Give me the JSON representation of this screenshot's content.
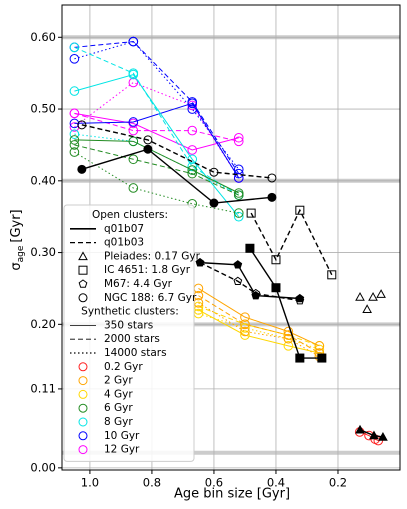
{
  "chart_data": {
    "type": "line",
    "xlabel": "Age bin size [Gyr]",
    "ylabel": {
      "symbol": "σ",
      "subscript": "age",
      "unit": "[Gyr]"
    },
    "xlim": [
      1.09,
      0.0
    ],
    "ylim": [
      -0.003,
      0.645
    ],
    "xticks": [
      {
        "value": 1,
        "label": "1.0"
      },
      0.8,
      0.6,
      0.4,
      0.2
    ],
    "yticks": [
      {
        "value": 0,
        "label": "0.00"
      },
      0.11,
      {
        "value": 0.2,
        "label": "0.20"
      },
      {
        "value": 0.3,
        "label": "0.30"
      },
      {
        "value": 0.4,
        "label": "0.40"
      },
      {
        "value": 0.5,
        "label": "0.50"
      },
      {
        "value": 0.6,
        "label": "0.60"
      }
    ],
    "grid": true,
    "hlines": [
      0.6,
      0.4,
      0.2,
      0.021
    ],
    "hline_color": "#cccccc",
    "series": [
      {
        "color": "#ff00ff",
        "dash": "solid",
        "marker": "circle",
        "filled": false,
        "x": [
          1.05,
          0.86,
          0.67,
          0.52
        ],
        "values": [
          0.494,
          0.48,
          0.443,
          0.46
        ]
      },
      {
        "color": "#ff00ff",
        "dash": "dashed",
        "marker": "circle",
        "filled": false,
        "x": [
          1.05,
          0.86,
          0.67,
          0.52
        ],
        "values": [
          0.494,
          0.47,
          0.47,
          0.455
        ]
      },
      {
        "color": "#ff00ff",
        "dash": "dotted",
        "marker": "circle",
        "filled": false,
        "x": [
          1.05,
          0.86,
          0.67,
          0.52
        ],
        "values": [
          0.475,
          0.537,
          0.505,
          0.404
        ]
      },
      {
        "color": "#0000ff",
        "dash": "solid",
        "marker": "circle",
        "filled": false,
        "x": [
          1.05,
          0.86,
          0.67,
          0.52
        ],
        "values": [
          0.48,
          0.482,
          0.508,
          0.404
        ]
      },
      {
        "color": "#0000ff",
        "dash": "dashed",
        "marker": "circle",
        "filled": false,
        "x": [
          1.05,
          0.86,
          0.67,
          0.52
        ],
        "values": [
          0.586,
          0.594,
          0.51,
          0.41
        ]
      },
      {
        "color": "#0000ff",
        "dash": "dotted",
        "marker": "circle",
        "filled": false,
        "x": [
          1.05,
          0.86,
          0.67,
          0.52
        ],
        "values": [
          0.57,
          0.594,
          0.5,
          0.416
        ]
      },
      {
        "color": "#00e5e5",
        "dash": "solid",
        "marker": "circle",
        "filled": false,
        "x": [
          1.05,
          0.86,
          0.67,
          0.52
        ],
        "values": [
          0.525,
          0.548,
          0.43,
          0.35
        ]
      },
      {
        "color": "#00e5e5",
        "dash": "dashed",
        "marker": "circle",
        "filled": false,
        "x": [
          1.05,
          0.86,
          0.67,
          0.52
        ],
        "values": [
          0.586,
          0.55,
          0.42,
          0.38
        ]
      },
      {
        "color": "#00e5e5",
        "dash": "dotted",
        "marker": "circle",
        "filled": false,
        "x": [
          1.05,
          0.86,
          0.67,
          0.52
        ],
        "values": [
          0.465,
          0.455,
          0.415,
          0.38
        ]
      },
      {
        "color": "#228b22",
        "dash": "solid",
        "marker": "circle",
        "filled": false,
        "x": [
          1.05,
          0.86,
          0.67,
          0.52
        ],
        "values": [
          0.457,
          0.455,
          0.415,
          0.383
        ]
      },
      {
        "color": "#228b22",
        "dash": "dashed",
        "marker": "circle",
        "filled": false,
        "x": [
          1.05,
          0.86,
          0.67,
          0.52
        ],
        "values": [
          0.45,
          0.43,
          0.41,
          0.38
        ]
      },
      {
        "color": "#228b22",
        "dash": "dotted",
        "marker": "circle",
        "filled": false,
        "x": [
          1.05,
          0.86,
          0.67,
          0.52
        ],
        "values": [
          0.44,
          0.39,
          0.368,
          0.355
        ]
      },
      {
        "color": "#ffd700",
        "dash": "solid",
        "marker": "circle",
        "filled": false,
        "x": [
          0.65,
          0.5,
          0.36,
          0.26
        ],
        "values": [
          0.22,
          0.185,
          0.17,
          0.16
        ]
      },
      {
        "color": "#ffd700",
        "dash": "dashed",
        "marker": "circle",
        "filled": false,
        "x": [
          0.65,
          0.5,
          0.36,
          0.26
        ],
        "values": [
          0.225,
          0.2,
          0.185,
          0.17
        ]
      },
      {
        "color": "#ffd700",
        "dash": "dotted",
        "marker": "circle",
        "filled": false,
        "x": [
          0.65,
          0.5,
          0.36,
          0.26
        ],
        "values": [
          0.215,
          0.195,
          0.18,
          0.165
        ]
      },
      {
        "color": "#ffa500",
        "dash": "solid",
        "marker": "circle",
        "filled": false,
        "x": [
          0.65,
          0.5,
          0.36,
          0.26
        ],
        "values": [
          0.25,
          0.21,
          0.19,
          0.17
        ]
      },
      {
        "color": "#ffa500",
        "dash": "dashed",
        "marker": "circle",
        "filled": false,
        "x": [
          0.65,
          0.5,
          0.36,
          0.26
        ],
        "values": [
          0.24,
          0.2,
          0.185,
          0.16
        ]
      },
      {
        "color": "#ffa500",
        "dash": "dotted",
        "marker": "circle",
        "filled": false,
        "x": [
          0.65,
          0.5,
          0.36,
          0.26
        ],
        "values": [
          0.23,
          0.19,
          0.18,
          0.155
        ]
      },
      {
        "color": "#ff2020",
        "dash": "solid",
        "marker": "circle",
        "filled": false,
        "x": [
          0.13,
          0.1,
          0.08,
          0.07
        ],
        "values": [
          0.05,
          0.045,
          0.04,
          0.038
        ]
      },
      {
        "color": "#000000",
        "dash": "solid",
        "marker": "circle",
        "filled": true,
        "x": [
          1.026,
          0.813,
          0.6,
          0.413
        ],
        "values": [
          0.416,
          0.444,
          0.369,
          0.377
        ]
      },
      {
        "color": "#000000",
        "dash": "dashed",
        "marker": "circle",
        "filled": false,
        "x": [
          1.026,
          0.813,
          0.6,
          0.413
        ],
        "values": [
          0.478,
          0.457,
          0.412,
          0.404
        ]
      },
      {
        "color": "#000000",
        "dash": "solid",
        "marker": "pentagon",
        "filled": true,
        "x": [
          0.645,
          0.523,
          0.465,
          0.323
        ],
        "values": [
          0.286,
          0.283,
          0.24,
          0.236
        ]
      },
      {
        "color": "#000000",
        "dash": "dashed",
        "marker": "pentagon",
        "filled": false,
        "x": [
          0.645,
          0.523,
          0.465,
          0.323
        ],
        "values": [
          0.286,
          0.26,
          0.243,
          0.233
        ]
      },
      {
        "color": "#000000",
        "dash": "solid",
        "marker": "square",
        "filled": true,
        "x": [
          0.484,
          0.4,
          0.323,
          0.252
        ],
        "values": [
          0.306,
          0.251,
          0.153,
          0.153
        ]
      },
      {
        "color": "#000000",
        "dash": "dashed",
        "marker": "square",
        "filled": false,
        "x": [
          0.48,
          0.4,
          0.323,
          0.22
        ],
        "values": [
          0.355,
          0.29,
          0.359,
          0.269
        ]
      },
      {
        "color": "#000000",
        "dash": "none",
        "marker": "triangle",
        "filled": false,
        "x": [
          0.129,
          0.106,
          0.087,
          0.061
        ],
        "values": [
          0.238,
          0.221,
          0.238,
          0.242
        ]
      },
      {
        "color": "#000000",
        "dash": "solid",
        "marker": "triangle",
        "filled": true,
        "x": [
          0.129,
          0.084,
          0.055
        ],
        "values": [
          0.053,
          0.045,
          0.043
        ]
      }
    ],
    "legend": [
      {
        "label": "Open clusters:"
      },
      {
        "label": "q01b07",
        "line": "solid",
        "width": 1.6
      },
      {
        "label": "q01b03",
        "line": "dashed",
        "width": 1.2
      },
      {
        "label": "Pleiades: 0.17 Gyr",
        "marker": "triangle"
      },
      {
        "label": "IC 4651: 1.8 Gyr",
        "marker": "square"
      },
      {
        "label": "M67: 4.4 Gyr",
        "marker": "pentagon"
      },
      {
        "label": "NGC 188: 6.7 Gyr",
        "marker": "circle"
      },
      {
        "label": "Synthetic clusters:"
      },
      {
        "label": "350 stars",
        "line": "solid",
        "width": 0.7
      },
      {
        "label": "2000 stars",
        "line": "dashed",
        "width": 0.9
      },
      {
        "label": "14000 stars",
        "line": "dotted",
        "width": 1.2
      },
      {
        "label": "0.2 Gyr",
        "marker": "circle",
        "color": "#ff2020"
      },
      {
        "label": "2 Gyr",
        "marker": "circle",
        "color": "#ffa500"
      },
      {
        "label": "4 Gyr",
        "marker": "circle",
        "color": "#ffd700"
      },
      {
        "label": "6 Gyr",
        "marker": "circle",
        "color": "#228b22"
      },
      {
        "label": "8 Gyr",
        "marker": "circle",
        "color": "#00e5e5"
      },
      {
        "label": "10 Gyr",
        "marker": "circle",
        "color": "#0000ff"
      },
      {
        "label": "12 Gyr",
        "marker": "circle",
        "color": "#ff00ff"
      }
    ]
  }
}
